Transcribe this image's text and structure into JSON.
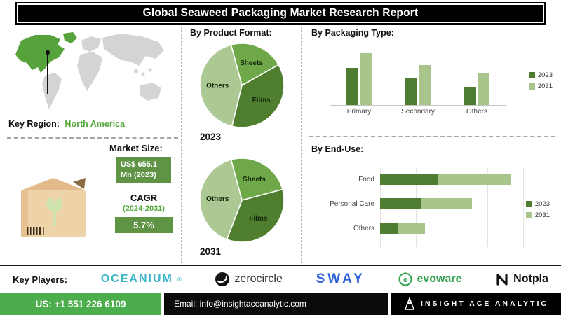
{
  "title": "Global Seaweed Packaging Market Research Report",
  "colors": {
    "dark_green_2023": "#4e7d31",
    "light_green_2031": "#a9c58c",
    "badge_green": "#5e9444",
    "footer_green": "#4bad4b",
    "region_green": "#52a83a",
    "map_highlight_green": "#57a33b",
    "map_gray": "#d4d4d4",
    "oceanium_teal": "#3bb6c9",
    "sway_blue": "#2e62d9",
    "evoware_green": "#35a14f"
  },
  "map": {
    "key_region_label": "Key Region:",
    "key_region_value": "North America",
    "highlighted_region": "North America"
  },
  "market": {
    "size_label": "Market Size:",
    "size_value": "US$ 655.1 Mn (2023)",
    "cagr_label": "CAGR",
    "cagr_period": "(2024-2031)",
    "cagr_value": "5.7%"
  },
  "chart_data": [
    {
      "type": "pie",
      "title": "By Product Format:",
      "year": "2023",
      "labels": [
        "Sheets",
        "Films",
        "Others"
      ],
      "values": [
        21,
        37,
        42
      ],
      "value_scale": "estimated percent share (no numeric labels shown in source)",
      "colors": [
        "#6fa848",
        "#4f7e2e",
        "#adc993"
      ],
      "start_angle": -15
    },
    {
      "type": "pie",
      "title": "By Product Format:",
      "year": "2031",
      "labels": [
        "Sheets",
        "Films",
        "Others"
      ],
      "values": [
        25,
        35,
        40
      ],
      "value_scale": "estimated percent share (no numeric labels shown in source)",
      "colors": [
        "#6fa848",
        "#4f7e2e",
        "#adc993"
      ],
      "start_angle": -15
    },
    {
      "type": "bar",
      "title": "By Packaging Type:",
      "categories": [
        "Primary",
        "Secondary",
        "Others"
      ],
      "series": [
        {
          "name": "2023",
          "color": "#4e7d31",
          "values": [
            52,
            38,
            24
          ]
        },
        {
          "name": "2031",
          "color": "#a9c58c",
          "values": [
            72,
            56,
            44
          ]
        }
      ],
      "ylim": [
        0,
        80
      ],
      "value_scale": "relative magnitudes (axis unlabeled in source)",
      "legend_position": "right",
      "grid": false
    },
    {
      "type": "bar-horizontal-stacked",
      "title": "By End-Use:",
      "categories": [
        "Food",
        "Personal Care",
        "Others"
      ],
      "series": [
        {
          "name": "2023",
          "color": "#4e7d31",
          "values": [
            65,
            46,
            20
          ]
        },
        {
          "name": "2031",
          "color": "#a9c58c",
          "values": [
            82,
            57,
            30
          ]
        }
      ],
      "xlim": [
        0,
        160
      ],
      "value_scale": "relative magnitudes (axis unlabeled in source)",
      "legend_position": "right",
      "grid": true
    }
  ],
  "key_players": {
    "label": "Key Players:",
    "players": [
      {
        "display": "OCEANIUM",
        "reg": "®"
      },
      {
        "display": "zerocircle"
      },
      {
        "display": "SWAY"
      },
      {
        "display": "evoware"
      },
      {
        "display": "Notpla"
      }
    ]
  },
  "footer": {
    "phone": "US: +1 551 226 6109",
    "email": "Email: info@insightaceanalytic.com",
    "brand": "INSIGHT ACE ANALYTIC"
  }
}
